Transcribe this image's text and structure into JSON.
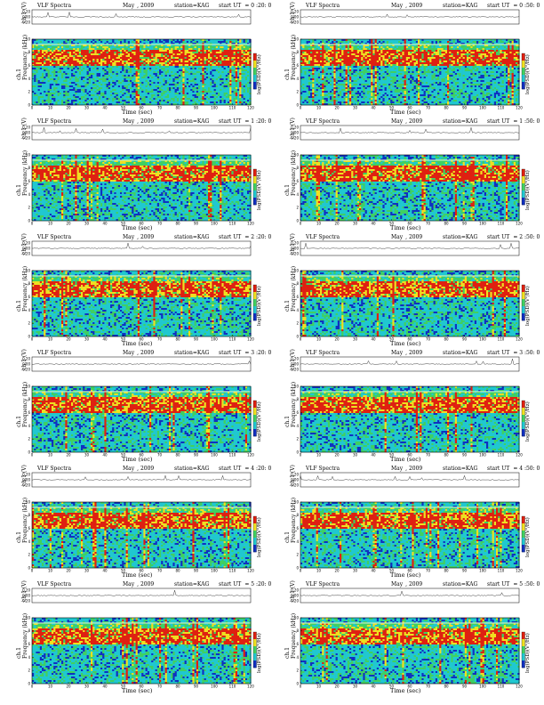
{
  "chart_data": [
    {
      "type": "heatmap",
      "title_left": "VLF Spectra",
      "date_month": "May",
      "date_year": ", 2009",
      "station": "station=KAG",
      "start_label": "start  UT",
      "start_time": "= 0 :20: 0",
      "volt_label": "ch.1 (V)",
      "volt_ticks": [
        "0.20",
        "0.00",
        "-0.20"
      ],
      "xlabel": "Time  (sec)",
      "ylabel_channel": "ch.1",
      "ylabel": "Frequency  (kHz)",
      "colorbar_label": "log(PSD)(V²/Hz)",
      "x_ticks": [
        0,
        10,
        20,
        30,
        40,
        50,
        60,
        70,
        80,
        90,
        100,
        110,
        120
      ],
      "y_ticks": [
        0,
        2,
        4,
        6,
        8,
        10
      ],
      "xlim": [
        0,
        120
      ],
      "ylim": [
        0,
        10
      ]
    },
    {
      "type": "heatmap",
      "title_left": "VLF Spectra",
      "date_month": "May",
      "date_year": ", 2009",
      "station": "station=KAG",
      "start_label": "start  UT",
      "start_time": "= 0 :50: 0",
      "volt_label": "ch.1 (V)",
      "volt_ticks": [
        "0.20",
        "0.00",
        "-0.20"
      ],
      "xlabel": "Time  (sec)",
      "ylabel_channel": "ch.1",
      "ylabel": "Frequency  (kHz)",
      "colorbar_label": "log(PSD)(V²/Hz)",
      "x_ticks": [
        0,
        10,
        20,
        30,
        40,
        50,
        60,
        70,
        80,
        90,
        100,
        110,
        120
      ],
      "y_ticks": [
        0,
        2,
        4,
        6,
        8,
        10
      ],
      "xlim": [
        0,
        120
      ],
      "ylim": [
        0,
        10
      ]
    },
    {
      "type": "heatmap",
      "title_left": "VLF Spectra",
      "date_month": "May",
      "date_year": ", 2009",
      "station": "station=KAG",
      "start_label": "start  UT",
      "start_time": "= 1 :20: 0",
      "volt_label": "ch.1 (V)",
      "volt_ticks": [
        "0.20",
        "0.00",
        "-0.20"
      ],
      "xlabel": "Time  (sec)",
      "ylabel_channel": "ch.1",
      "ylabel": "Frequency  (kHz)",
      "colorbar_label": "log(PSD)(V²/Hz)",
      "x_ticks": [
        0,
        10,
        20,
        30,
        40,
        50,
        60,
        70,
        80,
        90,
        100,
        110,
        120
      ],
      "y_ticks": [
        0,
        2,
        4,
        6,
        8,
        10
      ],
      "xlim": [
        0,
        120
      ],
      "ylim": [
        0,
        10
      ]
    },
    {
      "type": "heatmap",
      "title_left": "VLF Spectra",
      "date_month": "May",
      "date_year": ", 2009",
      "station": "station=KAG",
      "start_label": "start  UT",
      "start_time": "= 1 :50: 0",
      "volt_label": "ch.1 (V)",
      "volt_ticks": [
        "0.20",
        "0.00",
        "-0.20"
      ],
      "xlabel": "Time  (sec)",
      "ylabel_channel": "ch.1",
      "ylabel": "Frequency  (kHz)",
      "colorbar_label": "log(PSD)(V²/Hz)",
      "x_ticks": [
        0,
        10,
        20,
        30,
        40,
        50,
        60,
        70,
        80,
        90,
        100,
        110,
        120
      ],
      "y_ticks": [
        0,
        2,
        4,
        6,
        8,
        10
      ],
      "xlim": [
        0,
        120
      ],
      "ylim": [
        0,
        10
      ]
    },
    {
      "type": "heatmap",
      "title_left": "VLF Spectra",
      "date_month": "May",
      "date_year": ", 2009",
      "station": "station=KAG",
      "start_label": "start  UT",
      "start_time": "= 2 :20: 0",
      "volt_label": "ch.1 (V)",
      "volt_ticks": [
        "0.20",
        "0.00",
        "-0.20"
      ],
      "xlabel": "Time  (sec)",
      "ylabel_channel": "ch.1",
      "ylabel": "Frequency  (kHz)",
      "colorbar_label": "log(PSD)(V²/Hz)",
      "x_ticks": [
        0,
        10,
        20,
        30,
        40,
        50,
        60,
        70,
        80,
        90,
        100,
        110,
        120
      ],
      "y_ticks": [
        0,
        2,
        4,
        6,
        8,
        10
      ],
      "xlim": [
        0,
        120
      ],
      "ylim": [
        0,
        10
      ]
    },
    {
      "type": "heatmap",
      "title_left": "VLF Spectra",
      "date_month": "May",
      "date_year": ", 2009",
      "station": "station=KAG",
      "start_label": "start  UT",
      "start_time": "= 2 :50: 0",
      "volt_label": "ch.1 (V)",
      "volt_ticks": [
        "0.20",
        "0.00",
        "-0.20"
      ],
      "xlabel": "Time  (sec)",
      "ylabel_channel": "ch.1",
      "ylabel": "Frequency  (kHz)",
      "colorbar_label": "log(PSD)(V²/Hz)",
      "x_ticks": [
        0,
        10,
        20,
        30,
        40,
        50,
        60,
        70,
        80,
        90,
        100,
        110,
        120
      ],
      "y_ticks": [
        0,
        2,
        4,
        6,
        8,
        10
      ],
      "xlim": [
        0,
        120
      ],
      "ylim": [
        0,
        10
      ]
    },
    {
      "type": "heatmap",
      "title_left": "VLF Spectra",
      "date_month": "May",
      "date_year": ", 2009",
      "station": "station=KAG",
      "start_label": "start  UT",
      "start_time": "= 3 :20: 0",
      "volt_label": "ch.1 (V)",
      "volt_ticks": [
        "0.20",
        "0.00",
        "-0.20"
      ],
      "xlabel": "Time  (sec)",
      "ylabel_channel": "ch.1",
      "ylabel": "Frequency  (kHz)",
      "colorbar_label": "log(PSD)(V²/Hz)",
      "x_ticks": [
        0,
        10,
        20,
        30,
        40,
        50,
        60,
        70,
        80,
        90,
        100,
        110,
        120
      ],
      "y_ticks": [
        0,
        2,
        4,
        6,
        8,
        10
      ],
      "xlim": [
        0,
        120
      ],
      "ylim": [
        0,
        10
      ]
    },
    {
      "type": "heatmap",
      "title_left": "VLF Spectra",
      "date_month": "May",
      "date_year": ", 2009",
      "station": "station=KAG",
      "start_label": "start  UT",
      "start_time": "= 3 :50: 0",
      "volt_label": "ch.1 (V)",
      "volt_ticks": [
        "0.20",
        "0.00",
        "-0.20"
      ],
      "xlabel": "Time  (sec)",
      "ylabel_channel": "ch.1",
      "ylabel": "Frequency  (kHz)",
      "colorbar_label": "log(PSD)(V²/Hz)",
      "x_ticks": [
        0,
        10,
        20,
        30,
        40,
        50,
        60,
        70,
        80,
        90,
        100,
        110,
        120
      ],
      "y_ticks": [
        0,
        2,
        4,
        6,
        8,
        10
      ],
      "xlim": [
        0,
        120
      ],
      "ylim": [
        0,
        10
      ]
    },
    {
      "type": "heatmap",
      "title_left": "VLF Spectra",
      "date_month": "May",
      "date_year": ", 2009",
      "station": "station=KAG",
      "start_label": "start  UT",
      "start_time": "= 4 :20: 0",
      "volt_label": "ch.1 (V)",
      "volt_ticks": [
        "0.20",
        "0.00",
        "-0.20"
      ],
      "xlabel": "Time  (sec)",
      "ylabel_channel": "ch.1",
      "ylabel": "Frequency  (kHz)",
      "colorbar_label": "log(PSD)(V²/Hz)",
      "x_ticks": [
        0,
        10,
        20,
        30,
        40,
        50,
        60,
        70,
        80,
        90,
        100,
        110,
        120
      ],
      "y_ticks": [
        0,
        2,
        4,
        6,
        8,
        10
      ],
      "xlim": [
        0,
        120
      ],
      "ylim": [
        0,
        10
      ]
    },
    {
      "type": "heatmap",
      "title_left": "VLF Spectra",
      "date_month": "May",
      "date_year": ", 2009",
      "station": "station=KAG",
      "start_label": "start  UT",
      "start_time": "= 4 :50: 0",
      "volt_label": "ch.1 (V)",
      "volt_ticks": [
        "0.20",
        "0.00",
        "-0.20"
      ],
      "xlabel": "Time  (sec)",
      "ylabel_channel": "ch.1",
      "ylabel": "Frequency  (kHz)",
      "colorbar_label": "log(PSD)(V²/Hz)",
      "x_ticks": [
        0,
        10,
        20,
        30,
        40,
        50,
        60,
        70,
        80,
        90,
        100,
        110,
        120
      ],
      "y_ticks": [
        0,
        2,
        4,
        6,
        8,
        10
      ],
      "xlim": [
        0,
        120
      ],
      "ylim": [
        0,
        10
      ]
    },
    {
      "type": "heatmap",
      "title_left": "VLF Spectra",
      "date_month": "May",
      "date_year": ", 2009",
      "station": "station=KAG",
      "start_label": "start  UT",
      "start_time": "= 5 :20: 0",
      "volt_label": "ch.1 (V)",
      "volt_ticks": [
        "0.20",
        "0.00",
        "-0.20"
      ],
      "xlabel": "Time  (sec)",
      "ylabel_channel": "ch.1",
      "ylabel": "Frequency  (kHz)",
      "colorbar_label": "log(PSD)(V²/Hz)",
      "x_ticks": [
        0,
        10,
        20,
        30,
        40,
        50,
        60,
        70,
        80,
        90,
        100,
        110,
        120
      ],
      "y_ticks": [
        0,
        2,
        4,
        6,
        8,
        10
      ],
      "xlim": [
        0,
        120
      ],
      "ylim": [
        0,
        10
      ]
    },
    {
      "type": "heatmap",
      "title_left": "VLF Spectra",
      "date_month": "May",
      "date_year": ", 2009",
      "station": "station=KAG",
      "start_label": "start  UT",
      "start_time": "= 5 :50: 0",
      "volt_label": "ch.1 (V)",
      "volt_ticks": [
        "0.20",
        "0.00",
        "-0.20"
      ],
      "xlabel": "Time  (sec)",
      "ylabel_channel": "ch.1",
      "ylabel": "Frequency  (kHz)",
      "colorbar_label": "log(PSD)(V²/Hz)",
      "x_ticks": [
        0,
        10,
        20,
        30,
        40,
        50,
        60,
        70,
        80,
        90,
        100,
        110,
        120
      ],
      "y_ticks": [
        0,
        2,
        4,
        6,
        8,
        10
      ],
      "xlim": [
        0,
        120
      ],
      "ylim": [
        0,
        10
      ]
    }
  ],
  "colors": {
    "low": "#1030c0",
    "mid": "#20c8d0",
    "green": "#40d060",
    "high": "#f0e020",
    "peak": "#e02010"
  }
}
